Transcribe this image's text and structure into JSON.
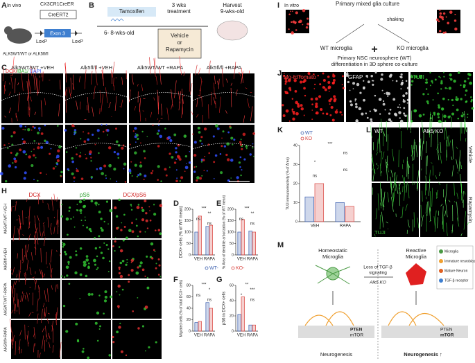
{
  "panel_letters": [
    "A",
    "B",
    "C",
    "D",
    "E",
    "F",
    "G",
    "H",
    "I",
    "J",
    "K",
    "L",
    "M"
  ],
  "panel_a": {
    "title": "In vivo",
    "construct_top": "CX3CR1CreER",
    "cre": "CreERT2",
    "exon": "Exon 3",
    "loxp_left": "LoxP",
    "loxp_right": "LoxP",
    "mice": "ALK5WT/WT or ALK5fl/fl"
  },
  "panel_b": {
    "tamoxifen": "Tamoxifen",
    "treatment_line1": "3 wks",
    "treatment_line2": "treatment",
    "harvest_line1": "Harvest",
    "harvest_line2": "9-wks-old",
    "start_age": "6- 8-wks-old",
    "drug_line1": "Vehicle",
    "drug_line2": "or",
    "drug_line3": "Rapamycin"
  },
  "panel_c": {
    "columns": [
      "Alk5WT/WT +VEH",
      "Alk5fl/fl +VEH",
      "Alk5WT/WT +RAPA",
      "Alk5fl/fl +RAPA"
    ],
    "stain_dcx": "DCX/",
    "stain_iba": "IBA1/",
    "stain_dapi": "DAPI"
  },
  "panel_h": {
    "columns": [
      "DCX",
      "pS6",
      "DCX/pS6"
    ],
    "rows": [
      "Alk5WT/WT+VEH",
      "Alk5fl/fl+VEH",
      "Alk5WT/WT+RAPA",
      "Alk5fl/fl+RAPA"
    ]
  },
  "panel_i": {
    "title": "In vitro",
    "culture": "Primary mixed glia culture",
    "shaking": "shaking",
    "wt": "WT microglia",
    "ko": "KO microglia",
    "plus": "+",
    "nsc_line1": "Primary NSC neurosphere (WT)",
    "nsc_line2": "differentiation in 3D sphere co-culture"
  },
  "panel_j": {
    "labels": [
      "Mg-tdTomato",
      "GFAP",
      "TUJI"
    ]
  },
  "panel_l": {
    "columns": [
      "WT",
      "Alk5 KO"
    ],
    "rows": [
      "Vehicle",
      "Rapamycin"
    ],
    "stain": "TUJI"
  },
  "panel_m": {
    "homeostatic_line1": "Homeostatic",
    "homeostatic_line2": "Microglia",
    "reactive_line1": "Reactive",
    "reactive_line2": "Microglia",
    "loss_line1": "Loss of TGF-β",
    "loss_line2": "signaling",
    "alk5": "Alk5 KO",
    "pten_left": "PTEN",
    "mtor_left": "mTOR",
    "pten_right": "PTEN",
    "mtor_right": "mTOR",
    "neuro_left": "Neurogenesis",
    "neuro_right": "Neurogenesis ↑",
    "legend": [
      "Microglia",
      "Immature neuroblasts",
      "Mature Neuron",
      "TGF-β receptor"
    ]
  },
  "chart_data": [
    {
      "type": "bar",
      "ylabel": "DCX+ cells (% of WT mean)",
      "categories": [
        "VEH",
        "RAPA"
      ],
      "ylim": [
        0,
        200
      ],
      "yticks": [
        0,
        50,
        100,
        150,
        200
      ],
      "legend": true,
      "series": [
        {
          "name": "WT-",
          "color": "#3b5fae",
          "values": [
            100,
            125
          ]
        },
        {
          "name": "KO-",
          "color": "#d9443f",
          "values": [
            170,
            130
          ]
        }
      ],
      "annotations": [
        "***",
        "**",
        "ns",
        "ns"
      ]
    },
    {
      "type": "bar",
      "ylabel": "% Area of dendrite arborization (% of WT mean)",
      "categories": [
        "VEH",
        "RAPA"
      ],
      "ylim": [
        0,
        200
      ],
      "yticks": [
        0,
        50,
        100,
        150,
        200
      ],
      "legend": false,
      "series": [
        {
          "name": "WT-",
          "color": "#3b5fae",
          "values": [
            100,
            105
          ]
        },
        {
          "name": "KO-",
          "color": "#d9443f",
          "values": [
            155,
            100
          ]
        }
      ],
      "annotations": [
        "***",
        "**",
        "ns",
        "ns"
      ]
    },
    {
      "type": "bar",
      "ylabel": "Migrated cells (% of total DCX+ cells)",
      "categories": [
        "VEH",
        "RAPA"
      ],
      "ylim": [
        0,
        80
      ],
      "yticks": [
        0,
        20,
        40,
        60,
        80
      ],
      "legend": false,
      "series": [
        {
          "name": "WT-",
          "color": "#3b5fae",
          "values": [
            15,
            50
          ]
        },
        {
          "name": "KO-",
          "color": "#d9443f",
          "values": [
            17,
            40
          ]
        }
      ],
      "annotations": [
        "***",
        "*",
        "ns",
        "ns"
      ]
    },
    {
      "type": "bar",
      "ylabel": "pS6 in DCX+ cells",
      "categories": [
        "VEH",
        "RAPA"
      ],
      "ylim": [
        0,
        60
      ],
      "yticks": [
        0,
        20,
        40,
        60
      ],
      "legend": false,
      "series": [
        {
          "name": "WT-",
          "color": "#3b5fae",
          "values": [
            22,
            8
          ]
        },
        {
          "name": "KO-",
          "color": "#d9443f",
          "values": [
            45,
            8
          ]
        }
      ],
      "annotations": [
        "**",
        "***",
        "*",
        "ns"
      ]
    },
    {
      "type": "bar",
      "ylabel": "TUJI immunoreactivity (% of Area)",
      "categories": [
        "VEH",
        "RAPA"
      ],
      "ylim": [
        0,
        40
      ],
      "yticks": [
        0,
        10,
        20,
        30,
        40
      ],
      "legend": true,
      "series": [
        {
          "name": "WT",
          "color": "#3b5fae",
          "values": [
            13,
            10
          ]
        },
        {
          "name": "KO",
          "color": "#d9443f",
          "values": [
            20,
            8
          ]
        }
      ],
      "annotations": [
        "***",
        "ns",
        "*",
        "ns",
        "ns"
      ]
    }
  ]
}
